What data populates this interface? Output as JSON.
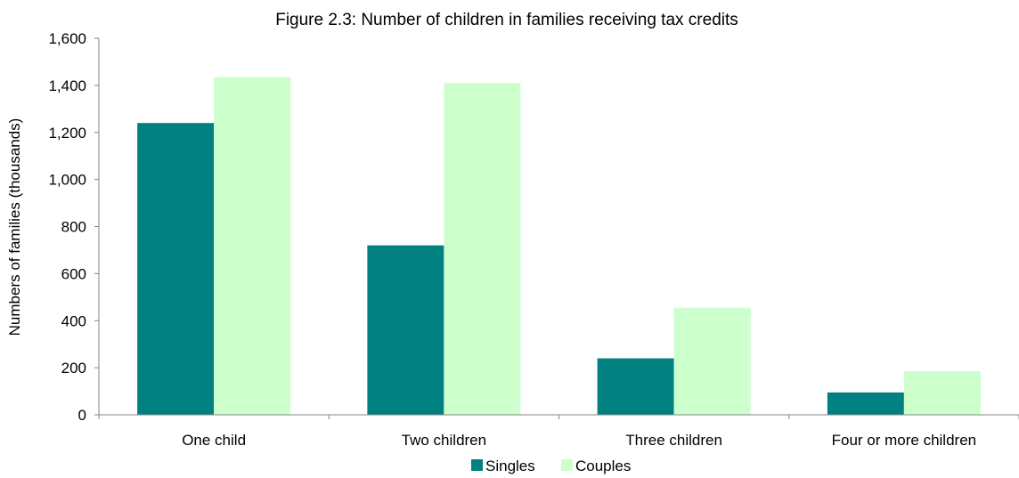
{
  "chart_data": {
    "type": "bar",
    "title": "Figure 2.3: Number of children in families receiving tax credits",
    "xlabel": "",
    "ylabel": "Numbers of families (thousands)",
    "categories": [
      "One child",
      "Two children",
      "Three children",
      "Four or more children"
    ],
    "series": [
      {
        "name": "Singles",
        "color": "#008080",
        "values": [
          1240,
          720,
          240,
          95
        ]
      },
      {
        "name": "Couples",
        "color": "#CCFFCC",
        "values": [
          1435,
          1410,
          455,
          185
        ]
      }
    ],
    "ylim": [
      0,
      1600
    ],
    "yticks": [
      "0",
      "200",
      "400",
      "600",
      "800",
      "1,000",
      "1,200",
      "1,400",
      "1,600"
    ],
    "grid": false,
    "legend_position": "bottom"
  }
}
